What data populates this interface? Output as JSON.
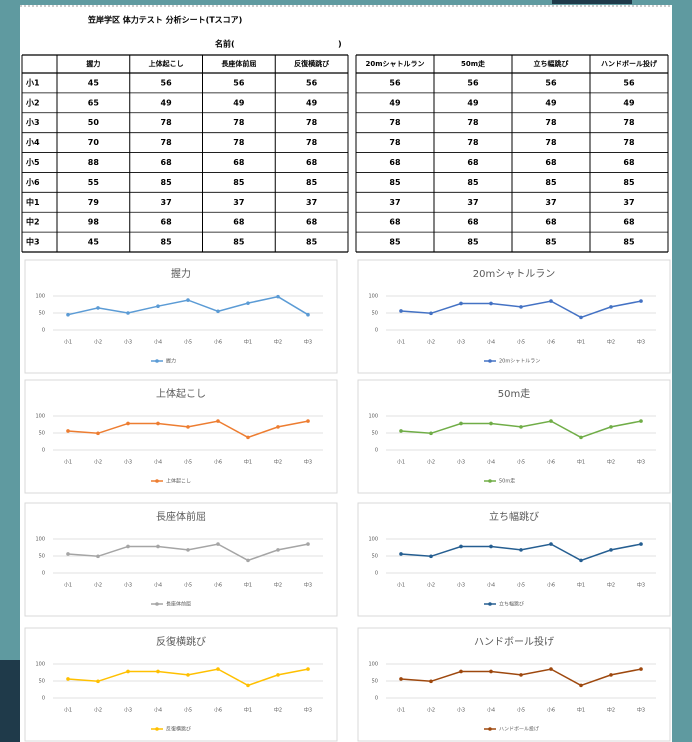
{
  "header": {
    "title": "笠岸学区  体力テスト 分析シート(Tスコア)",
    "name_open": "名前(",
    "name_close": ")"
  },
  "table": {
    "columns": [
      "握力",
      "上体起こし",
      "長座体前屈",
      "反復横跳び",
      "20mシャトルラン",
      "50m走",
      "立ち幅跳び",
      "ハンドボール投げ"
    ],
    "rows": [
      {
        "label": "小1",
        "values": [
          45,
          56,
          56,
          56,
          56,
          56,
          56,
          56
        ]
      },
      {
        "label": "小2",
        "values": [
          65,
          49,
          49,
          49,
          49,
          49,
          49,
          49
        ]
      },
      {
        "label": "小3",
        "values": [
          50,
          78,
          78,
          78,
          78,
          78,
          78,
          78
        ]
      },
      {
        "label": "小4",
        "values": [
          70,
          78,
          78,
          78,
          78,
          78,
          78,
          78
        ]
      },
      {
        "label": "小5",
        "values": [
          88,
          68,
          68,
          68,
          68,
          68,
          68,
          68
        ]
      },
      {
        "label": "小6",
        "values": [
          55,
          85,
          85,
          85,
          85,
          85,
          85,
          85
        ]
      },
      {
        "label": "中1",
        "values": [
          79,
          37,
          37,
          37,
          37,
          37,
          37,
          37
        ]
      },
      {
        "label": "中2",
        "values": [
          98,
          68,
          68,
          68,
          68,
          68,
          68,
          68
        ]
      },
      {
        "label": "中3",
        "values": [
          45,
          85,
          85,
          85,
          85,
          85,
          85,
          85
        ]
      }
    ]
  },
  "chart_data": [
    {
      "type": "line",
      "title": "握力",
      "categories": [
        "小1",
        "小2",
        "小3",
        "小4",
        "小5",
        "小6",
        "中1",
        "中2",
        "中3"
      ],
      "series": [
        {
          "name": "握力",
          "color": "#5b9bd5",
          "values": [
            45,
            65,
            50,
            70,
            88,
            55,
            79,
            98,
            45
          ]
        }
      ],
      "ylim": [
        0,
        100
      ],
      "yticks": [
        0,
        50,
        100
      ],
      "grid": true
    },
    {
      "type": "line",
      "title": "上体起こし",
      "categories": [
        "小1",
        "小2",
        "小3",
        "小4",
        "小5",
        "小6",
        "中1",
        "中2",
        "中3"
      ],
      "series": [
        {
          "name": "上体起こし",
          "color": "#ed7d31",
          "values": [
            56,
            49,
            78,
            78,
            68,
            85,
            37,
            68,
            85
          ]
        }
      ],
      "ylim": [
        0,
        100
      ],
      "yticks": [
        0,
        50,
        100
      ],
      "grid": true
    },
    {
      "type": "line",
      "title": "長座体前屈",
      "categories": [
        "小1",
        "小2",
        "小3",
        "小4",
        "小5",
        "小6",
        "中1",
        "中2",
        "中3"
      ],
      "series": [
        {
          "name": "長座体前屈",
          "color": "#a5a5a5",
          "values": [
            56,
            49,
            78,
            78,
            68,
            85,
            37,
            68,
            85
          ]
        }
      ],
      "ylim": [
        0,
        100
      ],
      "yticks": [
        0,
        50,
        100
      ],
      "grid": true
    },
    {
      "type": "line",
      "title": "反復横跳び",
      "categories": [
        "小1",
        "小2",
        "小3",
        "小4",
        "小5",
        "小6",
        "中1",
        "中2",
        "中3"
      ],
      "series": [
        {
          "name": "反復横跳び",
          "color": "#ffc000",
          "values": [
            56,
            49,
            78,
            78,
            68,
            85,
            37,
            68,
            85
          ]
        }
      ],
      "ylim": [
        0,
        100
      ],
      "yticks": [
        0,
        50,
        100
      ],
      "grid": true
    },
    {
      "type": "line",
      "title": "20mシャトルラン",
      "categories": [
        "小1",
        "小2",
        "小3",
        "小4",
        "小5",
        "小6",
        "中1",
        "中2",
        "中3"
      ],
      "series": [
        {
          "name": "20mシャトルラン",
          "color": "#4472c4",
          "values": [
            56,
            49,
            78,
            78,
            68,
            85,
            37,
            68,
            85
          ]
        }
      ],
      "ylim": [
        0,
        100
      ],
      "yticks": [
        0,
        50,
        100
      ],
      "grid": true
    },
    {
      "type": "line",
      "title": "50m走",
      "categories": [
        "小1",
        "小2",
        "小3",
        "小4",
        "小5",
        "小6",
        "中1",
        "中2",
        "中3"
      ],
      "series": [
        {
          "name": "50m走",
          "color": "#70ad47",
          "values": [
            56,
            49,
            78,
            78,
            68,
            85,
            37,
            68,
            85
          ]
        }
      ],
      "ylim": [
        0,
        100
      ],
      "yticks": [
        0,
        50,
        100
      ],
      "grid": true
    },
    {
      "type": "line",
      "title": "立ち幅跳び",
      "categories": [
        "小1",
        "小2",
        "小3",
        "小4",
        "小5",
        "小6",
        "中1",
        "中2",
        "中3"
      ],
      "series": [
        {
          "name": "立ち幅跳び",
          "color": "#255e91",
          "values": [
            56,
            49,
            78,
            78,
            68,
            85,
            37,
            68,
            85
          ]
        }
      ],
      "ylim": [
        0,
        100
      ],
      "yticks": [
        0,
        50,
        100
      ],
      "grid": true
    },
    {
      "type": "line",
      "title": "ハンドボール投げ",
      "categories": [
        "小1",
        "小2",
        "小3",
        "小4",
        "小5",
        "小6",
        "中1",
        "中2",
        "中3"
      ],
      "series": [
        {
          "name": "ハンドボール投げ",
          "color": "#9e480e",
          "values": [
            56,
            49,
            78,
            78,
            68,
            85,
            37,
            68,
            85
          ]
        }
      ],
      "ylim": [
        0,
        100
      ],
      "yticks": [
        0,
        50,
        100
      ],
      "grid": true
    }
  ]
}
